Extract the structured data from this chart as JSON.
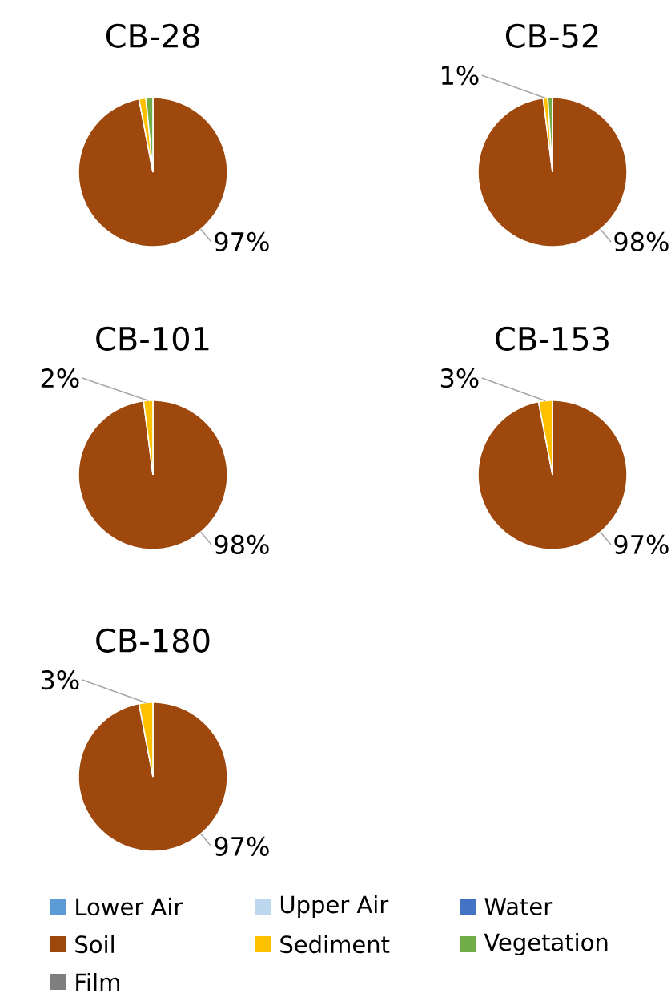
{
  "chart_data": [
    {
      "type": "pie",
      "title": "CB-28",
      "categories": [
        null,
        null,
        null,
        null,
        null,
        null,
        null
      ],
      "colors": [
        "#5b9bd5",
        "#bdd7ee",
        "#4472c4",
        "#9e480e",
        "#ffc000",
        "#70ad47",
        "#7f7f7f"
      ],
      "values": [
        0,
        0,
        0,
        97,
        1.5,
        1.5,
        0
      ],
      "value_labels": [
        null,
        null,
        null,
        "97%",
        null,
        null,
        null
      ]
    },
    {
      "type": "pie",
      "title": "CB-52",
      "categories": [
        null,
        null,
        null,
        null,
        null,
        null,
        null
      ],
      "colors": [
        "#5b9bd5",
        "#bdd7ee",
        "#4472c4",
        "#9e480e",
        "#ffc000",
        "#70ad47",
        "#7f7f7f"
      ],
      "values": [
        0,
        0,
        0,
        98,
        1,
        1,
        0
      ],
      "value_labels": [
        null,
        null,
        null,
        "98%",
        "1%",
        null,
        null
      ]
    },
    {
      "type": "pie",
      "title": "CB-101",
      "categories": [
        null,
        null,
        null,
        null,
        null,
        null,
        null
      ],
      "colors": [
        "#5b9bd5",
        "#bdd7ee",
        "#4472c4",
        "#9e480e",
        "#ffc000",
        "#70ad47",
        "#7f7f7f"
      ],
      "values": [
        0,
        0,
        0,
        98,
        2,
        0,
        0
      ],
      "value_labels": [
        null,
        null,
        null,
        "98%",
        "2%",
        null,
        null
      ]
    },
    {
      "type": "pie",
      "title": "CB-153",
      "categories": [
        null,
        null,
        null,
        null,
        null,
        null,
        null
      ],
      "colors": [
        "#5b9bd5",
        "#bdd7ee",
        "#4472c4",
        "#9e480e",
        "#ffc000",
        "#70ad47",
        "#7f7f7f"
      ],
      "values": [
        0,
        0,
        0,
        97,
        3,
        0,
        0
      ],
      "value_labels": [
        null,
        null,
        null,
        "97%",
        "3%",
        null,
        null
      ]
    },
    {
      "type": "pie",
      "title": "CB-180",
      "categories": [
        "Lower Air",
        "Upper Air",
        "Water",
        "Soil",
        "Sediment",
        "Vegetation",
        "Film"
      ],
      "colors": [
        "#5b9bd5",
        "#bdd7ee",
        "#4472c4",
        "#9e480e",
        "#ffc000",
        "#70ad47",
        "#7f7f7f"
      ],
      "values": [
        0,
        0,
        0,
        97,
        3,
        0,
        0
      ],
      "value_labels": [
        null,
        null,
        null,
        "97%",
        "3%",
        null,
        null
      ],
      "legend": "bottom"
    }
  ]
}
